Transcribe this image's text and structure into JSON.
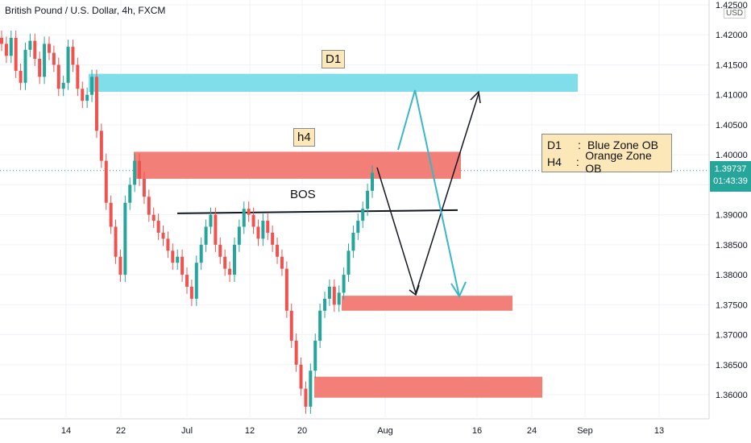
{
  "title": "British Pound / U.S. Dollar, 4h, FXCM",
  "currency": "USD",
  "price_tag": {
    "price": "1.39737",
    "countdown": "01:43:39"
  },
  "colors": {
    "up": "#26a69a",
    "down": "#ef5350",
    "blue_zone": "#80deea",
    "red_zone": "#f28079",
    "label_bg": "#fbe7b7"
  },
  "legend": [
    {
      "key": "D1",
      "sep": ":",
      "value": "Blue Zone OB"
    },
    {
      "key": "H4",
      "sep": ":",
      "value": "Orange Zone OB"
    }
  ],
  "chart_data": {
    "type": "candlestick",
    "y_axis_labels": [
      "1.42500",
      "1.42000",
      "1.41500",
      "1.41000",
      "1.40500",
      "1.40000",
      "1.39500",
      "1.39000",
      "1.38500",
      "1.38000",
      "1.37500",
      "1.37000",
      "1.36500",
      "1.36000"
    ],
    "x_axis_labels": [
      "14",
      "22",
      "Jul",
      "12",
      "20",
      "Aug",
      "16",
      "24",
      "Sep",
      "13"
    ],
    "ylim": [
      1.355,
      1.425
    ],
    "current_price": 1.39737,
    "closes": [
      1.4185,
      1.4165,
      1.4195,
      1.414,
      1.412,
      1.4175,
      1.419,
      1.416,
      1.413,
      1.4185,
      1.417,
      1.415,
      1.411,
      1.412,
      1.418,
      1.415,
      1.411,
      1.409,
      1.41,
      1.413,
      1.404,
      1.399,
      1.392,
      1.388,
      1.383,
      1.38,
      1.392,
      1.395,
      1.399,
      1.396,
      1.393,
      1.39,
      1.389,
      1.387,
      1.386,
      1.384,
      1.382,
      1.383,
      1.38,
      1.378,
      1.376,
      1.382,
      1.385,
      1.388,
      1.39,
      1.385,
      1.383,
      1.381,
      1.38,
      1.385,
      1.388,
      1.391,
      1.39,
      1.388,
      1.386,
      1.389,
      1.387,
      1.385,
      1.383,
      1.381,
      1.374,
      1.369,
      1.365,
      1.361,
      1.358,
      1.364,
      1.369,
      1.374,
      1.376,
      1.378,
      1.375,
      1.377,
      1.38,
      1.384,
      1.387,
      1.389,
      1.391,
      1.394,
      1.397
    ],
    "zones": [
      {
        "name": "D1",
        "label": "D1",
        "low": 1.4105,
        "high": 1.4135
      },
      {
        "name": "h4",
        "label": "h4",
        "low": 1.396,
        "high": 1.4005
      },
      {
        "name": "lower-ob-1",
        "label": "",
        "low": 1.374,
        "high": 1.3765
      },
      {
        "name": "lower-ob-2",
        "label": "",
        "low": 1.3595,
        "high": 1.363
      }
    ],
    "bos": {
      "label": "BOS",
      "price": 1.3905
    }
  }
}
